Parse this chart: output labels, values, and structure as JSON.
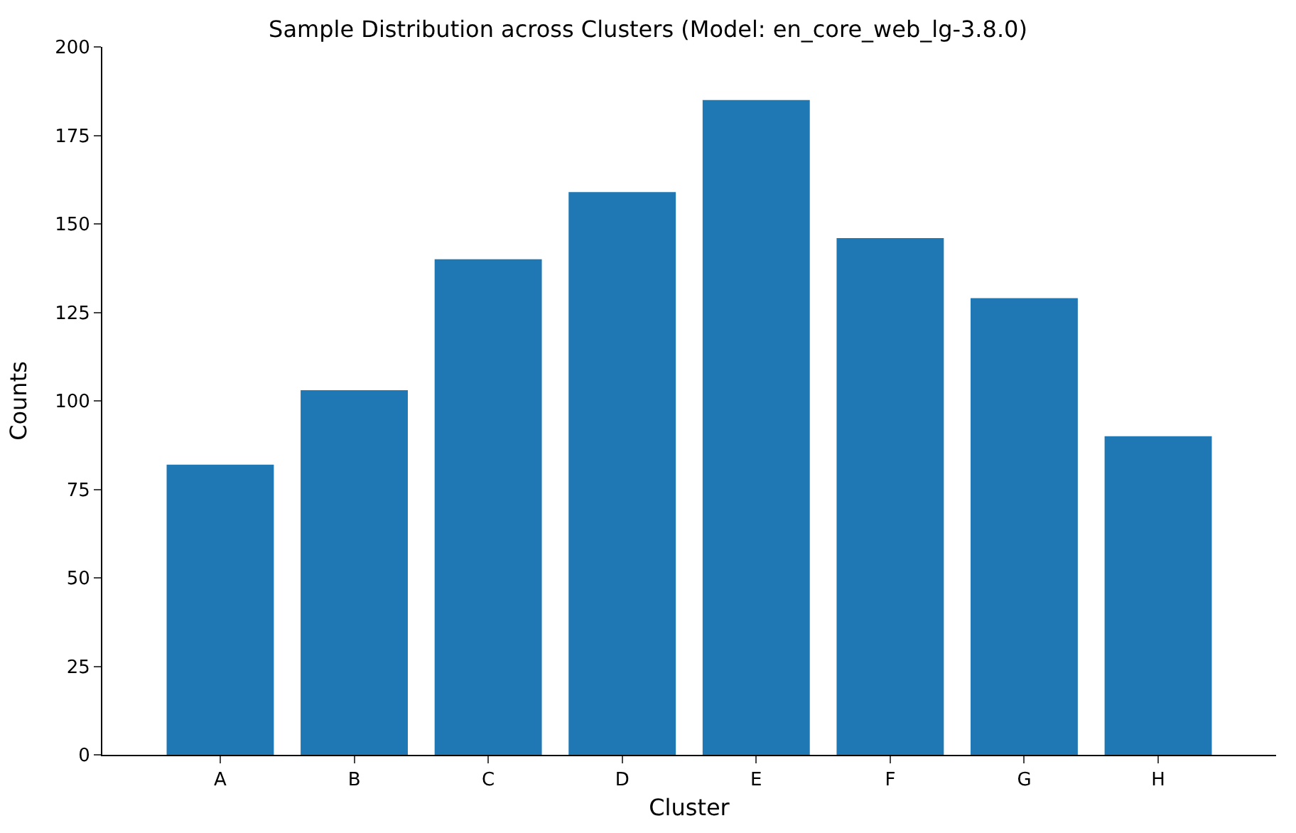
{
  "chart_data": {
    "type": "bar",
    "title": "Sample Distribution across Clusters (Model: en_core_web_lg-3.8.0)",
    "xlabel": "Cluster",
    "ylabel": "Counts",
    "categories": [
      "A",
      "B",
      "C",
      "D",
      "E",
      "F",
      "G",
      "H"
    ],
    "values": [
      82,
      103,
      140,
      159,
      185,
      146,
      129,
      90
    ],
    "color": "#1f77b4",
    "ylim": [
      0,
      200
    ],
    "yticks": [
      0,
      25,
      50,
      75,
      100,
      125,
      150,
      175,
      200
    ]
  }
}
